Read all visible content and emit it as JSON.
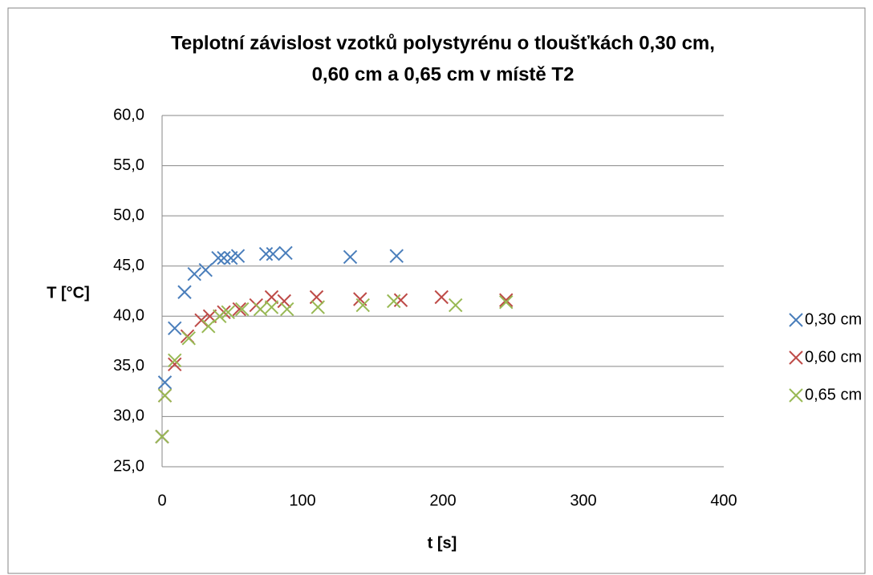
{
  "chart_data": {
    "type": "scatter",
    "title": [
      "Teplotní závislost vzotků polystyrénu o tloušťkách 0,30 cm,",
      "0,60 cm a 0,65 cm v místě T2"
    ],
    "x_label": "t [s]",
    "y_label": "T [°C]",
    "xlim": [
      0,
      400
    ],
    "xticks": [
      0,
      100,
      200,
      300,
      400
    ],
    "ylim": [
      25,
      60
    ],
    "yticks": [
      {
        "value": 25,
        "label": "25,0"
      },
      {
        "value": 30,
        "label": "30,0"
      },
      {
        "value": 35,
        "label": "35,0"
      },
      {
        "value": 40,
        "label": "40,0"
      },
      {
        "value": 45,
        "label": "45,0"
      },
      {
        "value": 50,
        "label": "50,0"
      },
      {
        "value": 55,
        "label": "55,0"
      },
      {
        "value": 60,
        "label": "60,0"
      }
    ],
    "grid": true,
    "legend": "right",
    "series": [
      {
        "name": "0,30 cm",
        "color": "#4a7ebb",
        "x": [
          0,
          2,
          9,
          16,
          23,
          31,
          40,
          44,
          49,
          54,
          74,
          79,
          88,
          134,
          167
        ],
        "values": [
          28.0,
          33.4,
          38.8,
          42.4,
          44.2,
          44.6,
          45.8,
          45.8,
          45.8,
          46.0,
          46.2,
          46.2,
          46.3,
          45.9,
          46.0
        ]
      },
      {
        "name": "0,60 cm",
        "color": "#be4b48",
        "x": [
          0,
          2,
          9,
          18,
          28,
          34,
          44,
          55,
          67,
          78,
          87,
          110,
          141,
          170,
          199,
          245
        ],
        "values": [
          28.0,
          32.1,
          35.2,
          38.0,
          39.6,
          40.0,
          40.4,
          40.7,
          41.1,
          41.9,
          41.5,
          41.9,
          41.7,
          41.6,
          41.9,
          41.6
        ]
      },
      {
        "name": "0,65 cm",
        "color": "#98b954",
        "x": [
          0,
          2,
          9,
          19,
          33,
          41,
          47,
          57,
          70,
          78,
          89,
          111,
          143,
          165,
          209,
          245
        ],
        "values": [
          28.0,
          32.1,
          35.6,
          37.8,
          39.0,
          40.0,
          40.4,
          40.7,
          40.7,
          40.9,
          40.7,
          40.9,
          41.1,
          41.5,
          41.1,
          41.4
        ]
      }
    ]
  }
}
